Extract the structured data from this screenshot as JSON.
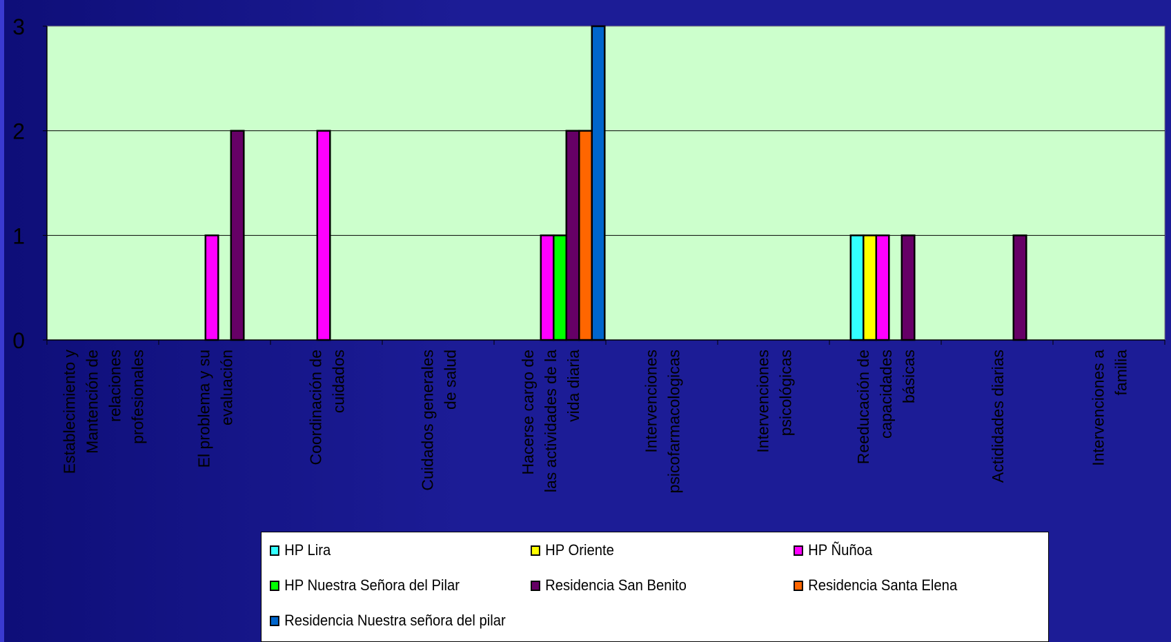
{
  "chart_data": {
    "type": "bar",
    "ylim": [
      0,
      3
    ],
    "yticks": [
      "0",
      "1",
      "2",
      "3"
    ],
    "grid": true,
    "plot_background": "#ccffcc",
    "legend_position": "bottom",
    "categories": [
      "Establecimiento y Mantención de relaciones profesionales",
      "El problema y su evaluación",
      "Coordinación de cuidados",
      "Cuidados generales de salud",
      "Hacerse cargo de las actividades de la vida diaria",
      "Intervenciones psicofarmacologicas",
      "Intervenciones psicológicas",
      "Reeducación de capacidades básicas",
      "Actididades diarias",
      "Intervenciones a familia"
    ],
    "category_label_lines": [
      [
        "Establecimiento y",
        "Mantención de",
        "relaciones",
        "profesionales"
      ],
      [
        "El problema y su",
        "evaluación"
      ],
      [
        "Coordinación de",
        "cuidados"
      ],
      [
        "Cuidados generales",
        "de salud"
      ],
      [
        "Hacerse cargo de",
        "las actividades de la",
        "vida diaria"
      ],
      [
        "Intervenciones",
        "psicofarmacologicas"
      ],
      [
        "Intervenciones",
        "psicológicas"
      ],
      [
        "Reeducación de",
        "capacidades",
        "básicas"
      ],
      [
        "Actididades diarias"
      ],
      [
        "Intervenciones a",
        "familia"
      ]
    ],
    "series": [
      {
        "name": "HP Lira",
        "color": "#33ffff",
        "values": [
          0,
          0,
          0,
          0,
          0,
          0,
          0,
          1,
          0,
          0
        ]
      },
      {
        "name": "HP Oriente",
        "color": "#ffff00",
        "values": [
          0,
          0,
          0,
          0,
          0,
          0,
          0,
          1,
          0,
          0
        ]
      },
      {
        "name": "HP Ñuñoa",
        "color": "#ff00ff",
        "values": [
          0,
          1,
          2,
          0,
          1,
          0,
          0,
          1,
          0,
          0
        ]
      },
      {
        "name": "HP Nuestra Señora del Pilar",
        "color": "#00ff00",
        "values": [
          0,
          0,
          0,
          0,
          1,
          0,
          0,
          0,
          0,
          0
        ]
      },
      {
        "name": "Residencia San Benito",
        "color": "#660066",
        "values": [
          0,
          2,
          0,
          0,
          2,
          0,
          0,
          1,
          1,
          0
        ]
      },
      {
        "name": "Residencia Santa Elena",
        "color": "#ff6600",
        "values": [
          0,
          0,
          0,
          0,
          2,
          0,
          0,
          0,
          0,
          0
        ]
      },
      {
        "name": "Residencia Nuestra señora del pilar",
        "color": "#0066cc",
        "values": [
          0,
          0,
          0,
          0,
          3,
          0,
          0,
          0,
          0,
          0
        ]
      }
    ]
  }
}
